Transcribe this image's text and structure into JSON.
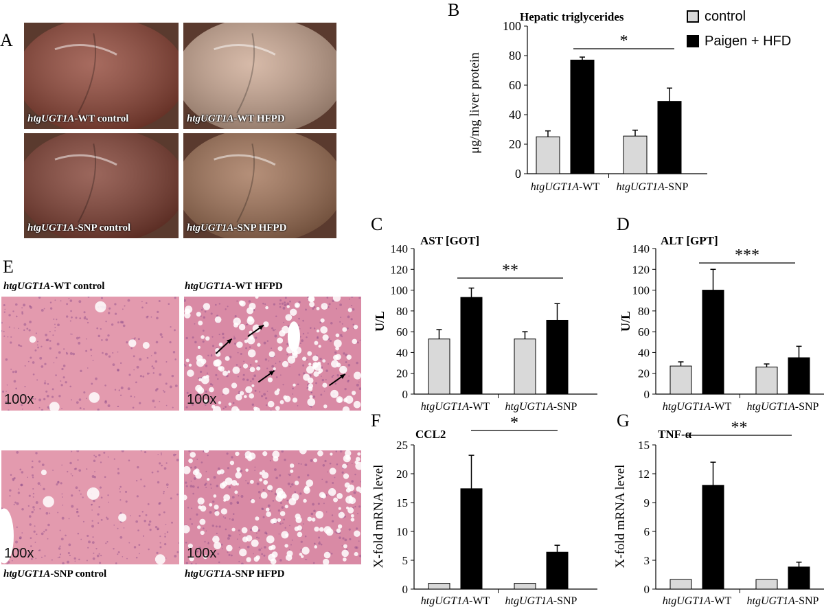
{
  "panel_labels": {
    "A": "A",
    "B": "B",
    "C": "C",
    "D": "D",
    "E": "E",
    "F": "F",
    "G": "G"
  },
  "photos": [
    {
      "prefix": "htgUGT1A",
      "suffix": "-WT control",
      "tone": "#8a3a2a"
    },
    {
      "prefix": "htgUGT1A",
      "suffix": "-WT HFPD",
      "tone": "#c9a38c"
    },
    {
      "prefix": "htgUGT1A",
      "suffix": "-SNP control",
      "tone": "#7a3426"
    },
    {
      "prefix": "htgUGT1A",
      "suffix": "-SNP HFPD",
      "tone": "#9c6a4c"
    }
  ],
  "histology": {
    "captions": [
      {
        "prefix": "htgUGT1A",
        "suffix": "-WT control"
      },
      {
        "prefix": "htgUGT1A",
        "suffix": "-WT HFPD"
      },
      {
        "prefix": "htgUGT1A",
        "suffix": "-SNP control"
      },
      {
        "prefix": "htgUGT1A",
        "suffix": "-SNP HFPD"
      }
    ],
    "magnification": "100x",
    "colors": {
      "control": "#e39aae",
      "hfpd": "#d98aa5"
    }
  },
  "legend": {
    "items": [
      {
        "label": "control",
        "color": "#d9d9d9"
      },
      {
        "label": "Paigen + HFD",
        "color": "#000000"
      }
    ]
  },
  "group_labels": [
    {
      "prefix": "htgUGT1A",
      "suffix": "-WT"
    },
    {
      "prefix": "htgUGT1A",
      "suffix": "-SNP"
    }
  ],
  "chart_data": [
    {
      "panel": "B",
      "type": "bar",
      "title": "Hepatic triglycerides",
      "ylabel": "μg/mg liver protein",
      "xlabel": "",
      "ylim": [
        0,
        100
      ],
      "ticks": [
        0,
        20,
        40,
        60,
        80,
        100
      ],
      "categories": [
        "htgUGT1A-WT",
        "htgUGT1A-SNP"
      ],
      "series": [
        {
          "name": "control",
          "values": [
            25,
            25.5
          ],
          "errors": [
            4,
            4
          ]
        },
        {
          "name": "Paigen + HFD",
          "values": [
            77,
            49
          ],
          "errors": [
            2,
            9
          ]
        }
      ],
      "significance": "*"
    },
    {
      "panel": "C",
      "type": "bar",
      "title": "AST [GOT]",
      "ylabel": "U/L",
      "xlabel": "",
      "ylim": [
        0,
        140
      ],
      "ticks": [
        0,
        20,
        40,
        60,
        80,
        100,
        120,
        140
      ],
      "categories": [
        "htgUGT1A-WT",
        "htgUGT1A-SNP"
      ],
      "series": [
        {
          "name": "control",
          "values": [
            53,
            53
          ],
          "errors": [
            9,
            7
          ]
        },
        {
          "name": "Paigen + HFD",
          "values": [
            93,
            71
          ],
          "errors": [
            9,
            16
          ]
        }
      ],
      "significance": "**"
    },
    {
      "panel": "D",
      "type": "bar",
      "title": "ALT [GPT]",
      "ylabel": "U/L",
      "xlabel": "",
      "ylim": [
        0,
        140
      ],
      "ticks": [
        0,
        20,
        40,
        60,
        80,
        100,
        120,
        140
      ],
      "categories": [
        "htgUGT1A-WT",
        "htgUGT1A-SNP"
      ],
      "series": [
        {
          "name": "control",
          "values": [
            27,
            26
          ],
          "errors": [
            4,
            3
          ]
        },
        {
          "name": "Paigen + HFD",
          "values": [
            100,
            35
          ],
          "errors": [
            20,
            11
          ]
        }
      ],
      "significance": "***"
    },
    {
      "panel": "F",
      "type": "bar",
      "title": "CCL2",
      "ylabel": "X-fold mRNA level",
      "xlabel": "",
      "ylim": [
        0,
        25
      ],
      "ticks": [
        0,
        5,
        10,
        15,
        20,
        25
      ],
      "categories": [
        "htgUGT1A-WT",
        "htgUGT1A-SNP"
      ],
      "series": [
        {
          "name": "control",
          "values": [
            1,
            1
          ],
          "errors": [
            0,
            0
          ]
        },
        {
          "name": "Paigen + HFD",
          "values": [
            17.4,
            6.4
          ],
          "errors": [
            5.8,
            1.2
          ]
        }
      ],
      "significance": "*"
    },
    {
      "panel": "G",
      "type": "bar",
      "title": "TNF-α",
      "ylabel": "X-fold mRNA level",
      "xlabel": "",
      "ylim": [
        0,
        15
      ],
      "ticks": [
        0,
        3,
        6,
        9,
        12,
        15
      ],
      "categories": [
        "htgUGT1A-WT",
        "htgUGT1A-SNP"
      ],
      "series": [
        {
          "name": "control",
          "values": [
            1,
            1
          ],
          "errors": [
            0,
            0
          ]
        },
        {
          "name": "Paigen + HFD",
          "values": [
            10.8,
            2.3
          ],
          "errors": [
            2.4,
            0.5
          ]
        }
      ],
      "significance": "**"
    }
  ]
}
